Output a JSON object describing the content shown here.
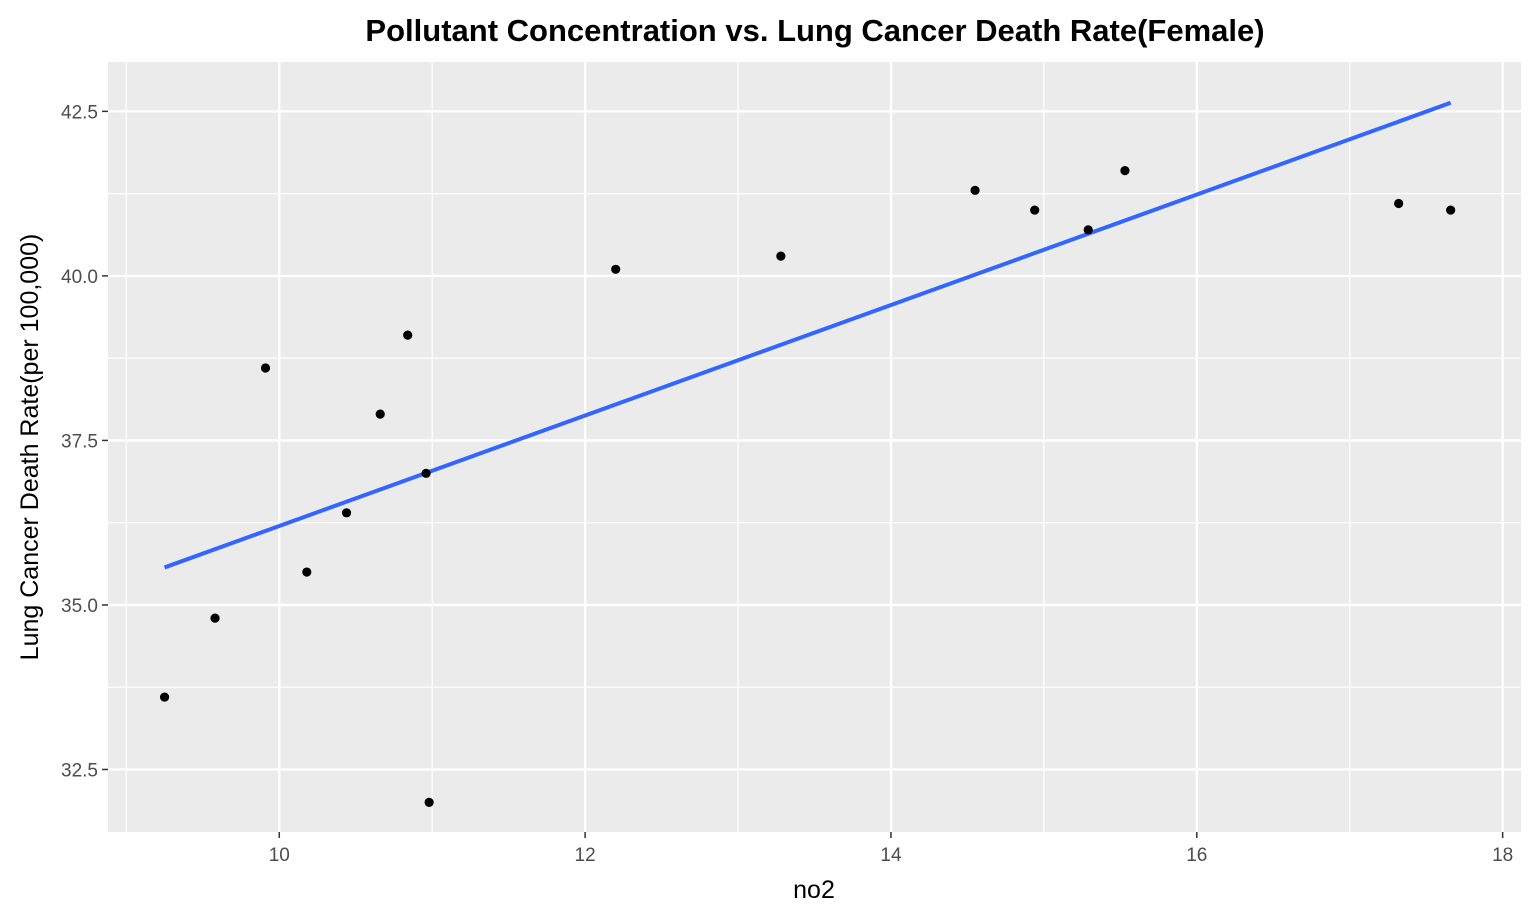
{
  "chart_data": {
    "type": "scatter",
    "title": "Pollutant Concentration vs. Lung Cancer Death Rate(Female)",
    "xlabel": "no2",
    "ylabel": "Lung Cancer Death Rate(per 100,000)",
    "xlim": [
      8.88,
      18.12
    ],
    "ylim": [
      31.55,
      43.25
    ],
    "x_ticks": [
      10,
      12,
      14,
      16,
      18
    ],
    "x_tick_labels": [
      "10",
      "12",
      "14",
      "16",
      "18"
    ],
    "x_minor_ticks": [
      9,
      11,
      13,
      15,
      17
    ],
    "y_ticks": [
      32.5,
      35.0,
      37.5,
      40.0,
      42.5
    ],
    "y_tick_labels": [
      "32.5",
      "35.0",
      "37.5",
      "40.0",
      "42.5"
    ],
    "y_minor_ticks": [
      33.75,
      36.25,
      38.75,
      41.25
    ],
    "grid": true,
    "legend": "none",
    "points": [
      {
        "x": 9.25,
        "y": 33.6
      },
      {
        "x": 9.58,
        "y": 34.8
      },
      {
        "x": 9.91,
        "y": 38.6
      },
      {
        "x": 10.18,
        "y": 35.5
      },
      {
        "x": 10.44,
        "y": 36.4
      },
      {
        "x": 10.66,
        "y": 37.9
      },
      {
        "x": 10.84,
        "y": 39.1
      },
      {
        "x": 10.96,
        "y": 37.0
      },
      {
        "x": 10.98,
        "y": 32.0
      },
      {
        "x": 12.2,
        "y": 40.1
      },
      {
        "x": 13.28,
        "y": 40.3
      },
      {
        "x": 14.55,
        "y": 41.3
      },
      {
        "x": 14.94,
        "y": 41.0
      },
      {
        "x": 15.29,
        "y": 40.7
      },
      {
        "x": 15.53,
        "y": 41.6
      },
      {
        "x": 17.32,
        "y": 41.1
      },
      {
        "x": 17.66,
        "y": 41.0
      }
    ],
    "fit_line": {
      "method": "linear",
      "x": [
        9.25,
        17.66
      ],
      "y": [
        35.57,
        42.63
      ]
    },
    "colors": {
      "panel_background": "#ebebeb",
      "grid": "#ffffff",
      "points": "#000000",
      "fit_line": "#3366ff"
    }
  }
}
